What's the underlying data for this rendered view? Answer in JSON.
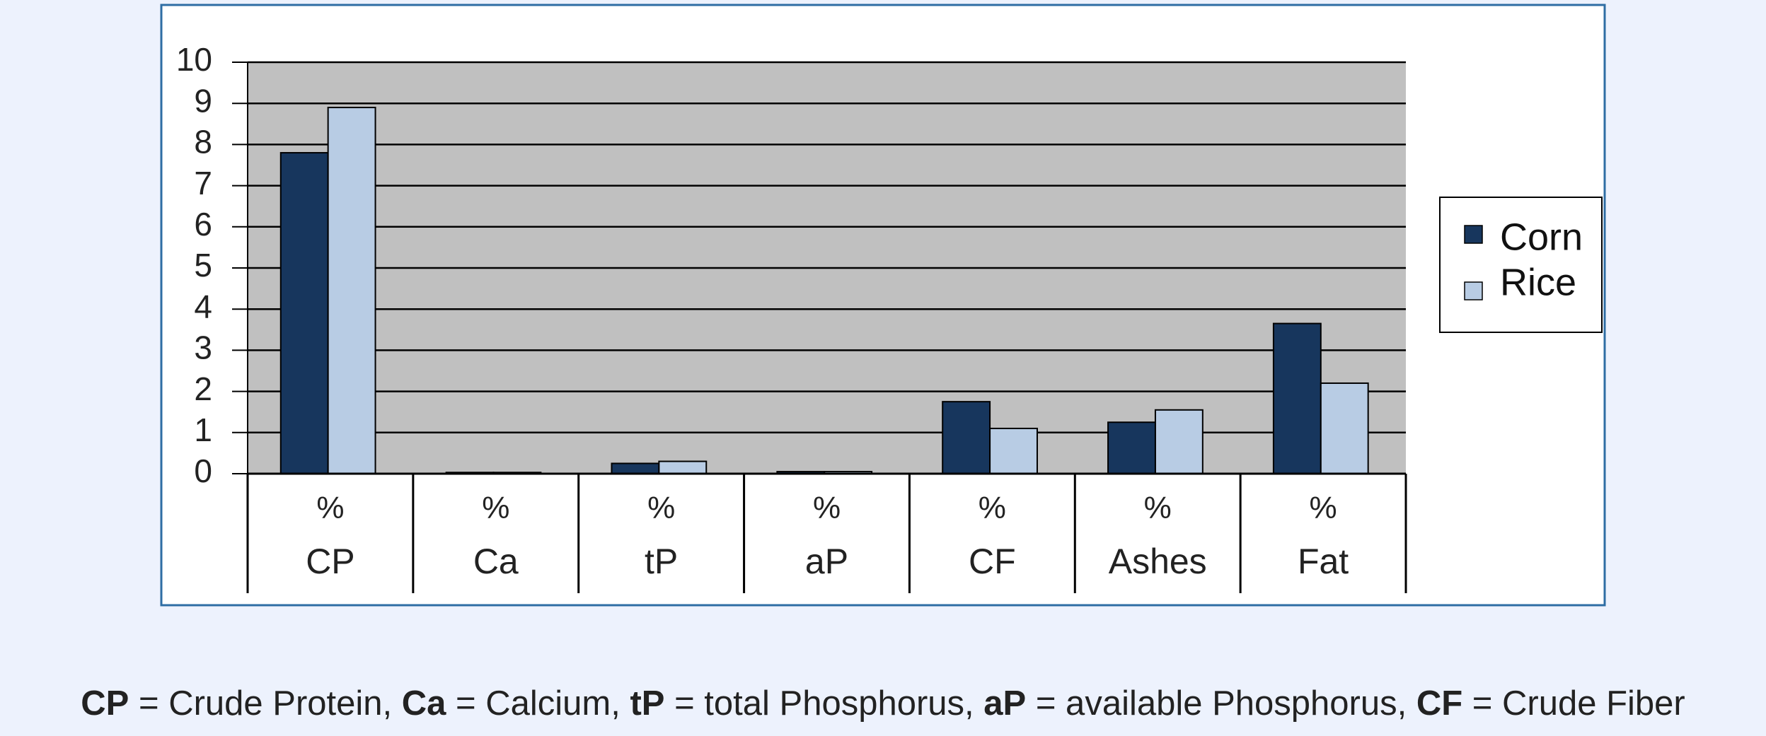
{
  "chart_data": {
    "type": "bar",
    "categories": [
      "CP",
      "Ca",
      "tP",
      "aP",
      "CF",
      "Ashes",
      "Fat"
    ],
    "category_unit": "%",
    "series": [
      {
        "name": "Corn",
        "color": "#17365d",
        "values": [
          7.8,
          0.03,
          0.25,
          0.05,
          1.75,
          1.25,
          3.65
        ]
      },
      {
        "name": "Rice",
        "color": "#b8cce4",
        "values": [
          8.9,
          0.03,
          0.3,
          0.05,
          1.1,
          1.55,
          2.2
        ]
      }
    ],
    "ylim": [
      0,
      10
    ],
    "yticks": [
      0,
      1,
      2,
      3,
      4,
      5,
      6,
      7,
      8,
      9,
      10
    ],
    "grid": true,
    "legend": "right"
  },
  "caption": [
    {
      "bold": "CP",
      "text": " = Crude Protein, "
    },
    {
      "bold": "Ca",
      "text": " = Calcium, "
    },
    {
      "bold": "tP",
      "text": " = total Phosphorus, "
    },
    {
      "bold": "aP",
      "text": " = available Phosphorus, "
    },
    {
      "bold": "CF",
      "text": " = Crude Fiber"
    }
  ]
}
